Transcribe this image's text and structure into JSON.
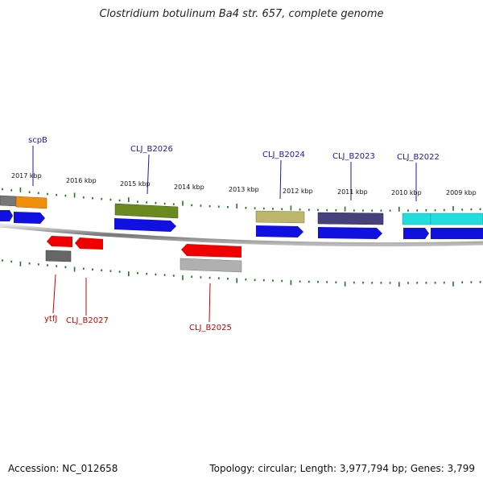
{
  "header": {
    "title": "Clostridium botulinum Ba4 str. 657, complete genome"
  },
  "footer": {
    "accession": "Accession: NC_012658",
    "summary": "Topology: circular; Length: 3,977,794 bp; Genes: 3,799"
  },
  "colors": {
    "backbone": "#777777",
    "tick": "#1f7a1f",
    "label_top": "#1a1aa6",
    "label_bottom": "#cc0000",
    "cds": "#1010e0"
  },
  "ruler": {
    "labels": [
      "2017 kbp",
      "2016 kbp",
      "2015 kbp",
      "2014 kbp",
      "2013 kbp",
      "2012 kbp",
      "2011 kbp",
      "2010 kbp",
      "2009 kbp"
    ]
  },
  "labels_top": [
    {
      "name": "scpB"
    },
    {
      "name": "CLJ_B2026"
    },
    {
      "name": "CLJ_B2024"
    },
    {
      "name": "CLJ_B2023"
    },
    {
      "name": "CLJ_B2022"
    }
  ],
  "labels_bottom": [
    {
      "name": "ytfJ"
    },
    {
      "name": "CLJ_B2027"
    },
    {
      "name": "CLJ_B2025"
    }
  ],
  "features": [
    {
      "name": "gene-grey-left",
      "color": "#777777"
    },
    {
      "name": "gene-scpB",
      "color": "#f0900a"
    },
    {
      "name": "gene-CLJ_B2026",
      "color": "#6a8a20"
    },
    {
      "name": "gene-CLJ_B2024",
      "color": "#bdb76b"
    },
    {
      "name": "gene-CLJ_B2023",
      "color": "#48407a"
    },
    {
      "name": "gene-CLJ_B2022-a",
      "color": "#22dddd"
    },
    {
      "name": "gene-CLJ_B2022-b",
      "color": "#22dddd"
    },
    {
      "name": "gene-ytfJ",
      "color": "#666666"
    },
    {
      "name": "gene-CLJ_B2025",
      "color": "#b0b0b0"
    },
    {
      "name": "cds-forward",
      "color": "#1010e0"
    },
    {
      "name": "cds-reverse",
      "color": "#ee0000"
    }
  ]
}
